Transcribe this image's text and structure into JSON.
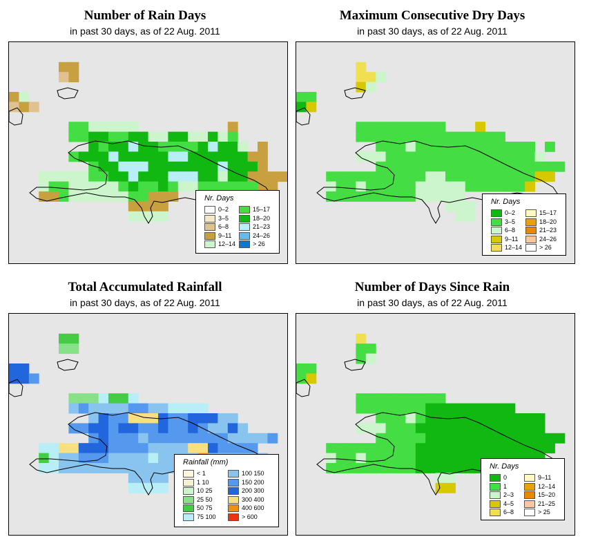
{
  "panels": [
    {
      "title": "Number of Rain Days",
      "subtitle": "in past 30 days, as of  22 Aug. 2011",
      "legend_title": "Nr. Days",
      "legend": [
        {
          "label": "0–2",
          "color": "#ffffff"
        },
        {
          "label": "3–5",
          "color": "#f5e6c8"
        },
        {
          "label": "6–8",
          "color": "#e0c290"
        },
        {
          "label": "9–11",
          "color": "#c8a040"
        },
        {
          "label": "12–14",
          "color": "#ccf5cc"
        },
        {
          "label": "15–17",
          "color": "#44dd44"
        },
        {
          "label": "18–20",
          "color": "#11b811"
        },
        {
          "label": "21–23",
          "color": "#b8eef5"
        },
        {
          "label": "24–26",
          "color": "#66bbee"
        },
        {
          "label": "> 26",
          "color": "#1177cc"
        }
      ]
    },
    {
      "title": "Maximum Consecutive Dry Days",
      "subtitle": "in past 30 days, as of  22 Aug. 2011",
      "legend_title": "Nr. Days",
      "legend": [
        {
          "label": "0–2",
          "color": "#11b811"
        },
        {
          "label": "3–5",
          "color": "#44dd44"
        },
        {
          "label": "6–8",
          "color": "#ccf5cc"
        },
        {
          "label": "9–11",
          "color": "#d8c800"
        },
        {
          "label": "12–14",
          "color": "#f0e050"
        },
        {
          "label": "15–17",
          "color": "#fff8c0"
        },
        {
          "label": "18–20",
          "color": "#e8a010"
        },
        {
          "label": "21–23",
          "color": "#e88800"
        },
        {
          "label": "24–26",
          "color": "#f8c8a0"
        },
        {
          "label": "> 26",
          "color": "#ffffff"
        }
      ]
    },
    {
      "title": "Total Accumulated Rainfall",
      "subtitle": "in past 30 days, as of  22 Aug. 2011",
      "legend_title": "Rainfall (mm)",
      "legend": [
        {
          "label": "< 1",
          "color": "#fdf5e0"
        },
        {
          "label": "1    10",
          "color": "#f5f0d0"
        },
        {
          "label": "10    25",
          "color": "#ccf5cc"
        },
        {
          "label": "25    50",
          "color": "#88e088"
        },
        {
          "label": "50    75",
          "color": "#44cc44"
        },
        {
          "label": "75  100",
          "color": "#b8eef5"
        },
        {
          "label": "100  150",
          "color": "#88c4ee"
        },
        {
          "label": "150  200",
          "color": "#5599ee"
        },
        {
          "label": "200  300",
          "color": "#2266dd"
        },
        {
          "label": "300  400",
          "color": "#f8e080"
        },
        {
          "label": "400  600",
          "color": "#f09010"
        },
        {
          "label": "> 600",
          "color": "#ee3311"
        }
      ]
    },
    {
      "title": "Number of Days Since Rain",
      "subtitle": "in past 30 days, as of  22 Aug. 2011",
      "legend_title": "Nr. Days",
      "legend": [
        {
          "label": "0",
          "color": "#11b811"
        },
        {
          "label": "1",
          "color": "#44dd44"
        },
        {
          "label": "2–3",
          "color": "#ccf5cc"
        },
        {
          "label": "4–5",
          "color": "#d8c800"
        },
        {
          "label": "6–8",
          "color": "#f0e050"
        },
        {
          "label": "9–11",
          "color": "#fff8c0"
        },
        {
          "label": "12–14",
          "color": "#e8a010"
        },
        {
          "label": "15–20",
          "color": "#e88800"
        },
        {
          "label": "21–25",
          "color": "#f8c8a0"
        },
        {
          "label": "> 25",
          "color": "#ffffff"
        }
      ]
    }
  ]
}
